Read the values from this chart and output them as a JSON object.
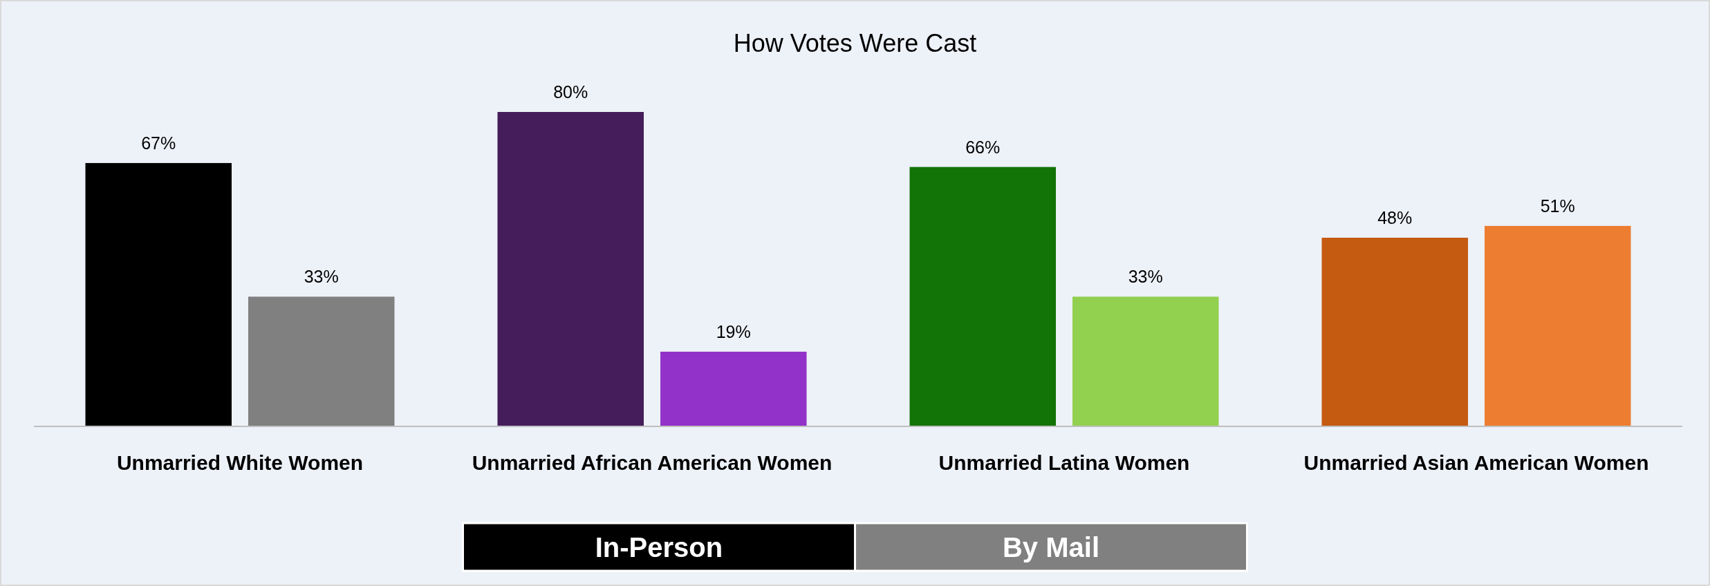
{
  "chart_data": {
    "type": "bar",
    "title": "How Votes Were Cast",
    "categories": [
      "Unmarried White Women",
      "Unmarried African American Women",
      "Unmarried Latina Women",
      "Unmarried Asian American Women"
    ],
    "series": [
      {
        "name": "In-Person",
        "color": "#000000",
        "values": [
          67,
          80,
          66,
          48
        ],
        "colors": [
          "#000000",
          "#451d5a",
          "#127307",
          "#c55a11"
        ],
        "value_labels": [
          "67%",
          "80%",
          "66%",
          "48%"
        ]
      },
      {
        "name": "By Mail",
        "color": "#808080",
        "values": [
          33,
          19,
          33,
          51
        ],
        "colors": [
          "#808080",
          "#9232c8",
          "#92d050",
          "#ed7d31"
        ],
        "value_labels": [
          "33%",
          "19%",
          "33%",
          "51%"
        ]
      }
    ],
    "legend": "bottom"
  }
}
